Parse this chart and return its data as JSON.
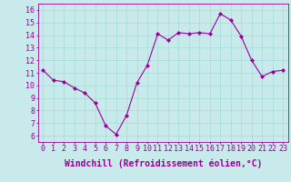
{
  "x": [
    0,
    1,
    2,
    3,
    4,
    5,
    6,
    7,
    8,
    9,
    10,
    11,
    12,
    13,
    14,
    15,
    16,
    17,
    18,
    19,
    20,
    21,
    22,
    23
  ],
  "y": [
    11.2,
    10.4,
    10.3,
    9.8,
    9.4,
    8.6,
    6.8,
    6.1,
    7.6,
    10.2,
    11.6,
    14.1,
    13.6,
    14.2,
    14.1,
    14.2,
    14.1,
    15.7,
    15.2,
    13.9,
    12.0,
    10.7,
    11.1,
    11.2
  ],
  "line_color": "#990099",
  "marker": "D",
  "marker_size": 2,
  "bg_color": "#c8eaea",
  "grid_color": "#aadddd",
  "xlabel": "Windchill (Refroidissement éolien,°C)",
  "xlabel_fontsize": 7,
  "xtick_labels": [
    "0",
    "1",
    "2",
    "3",
    "4",
    "5",
    "6",
    "7",
    "8",
    "9",
    "10",
    "11",
    "12",
    "13",
    "14",
    "15",
    "16",
    "17",
    "18",
    "19",
    "20",
    "21",
    "22",
    "23"
  ],
  "ytick_labels": [
    "6",
    "7",
    "8",
    "9",
    "10",
    "11",
    "12",
    "13",
    "14",
    "15",
    "16"
  ],
  "ylim": [
    5.5,
    16.5
  ],
  "xlim": [
    -0.5,
    23.5
  ],
  "tick_fontsize": 6,
  "tick_color": "#990099",
  "spine_color": "#990099"
}
